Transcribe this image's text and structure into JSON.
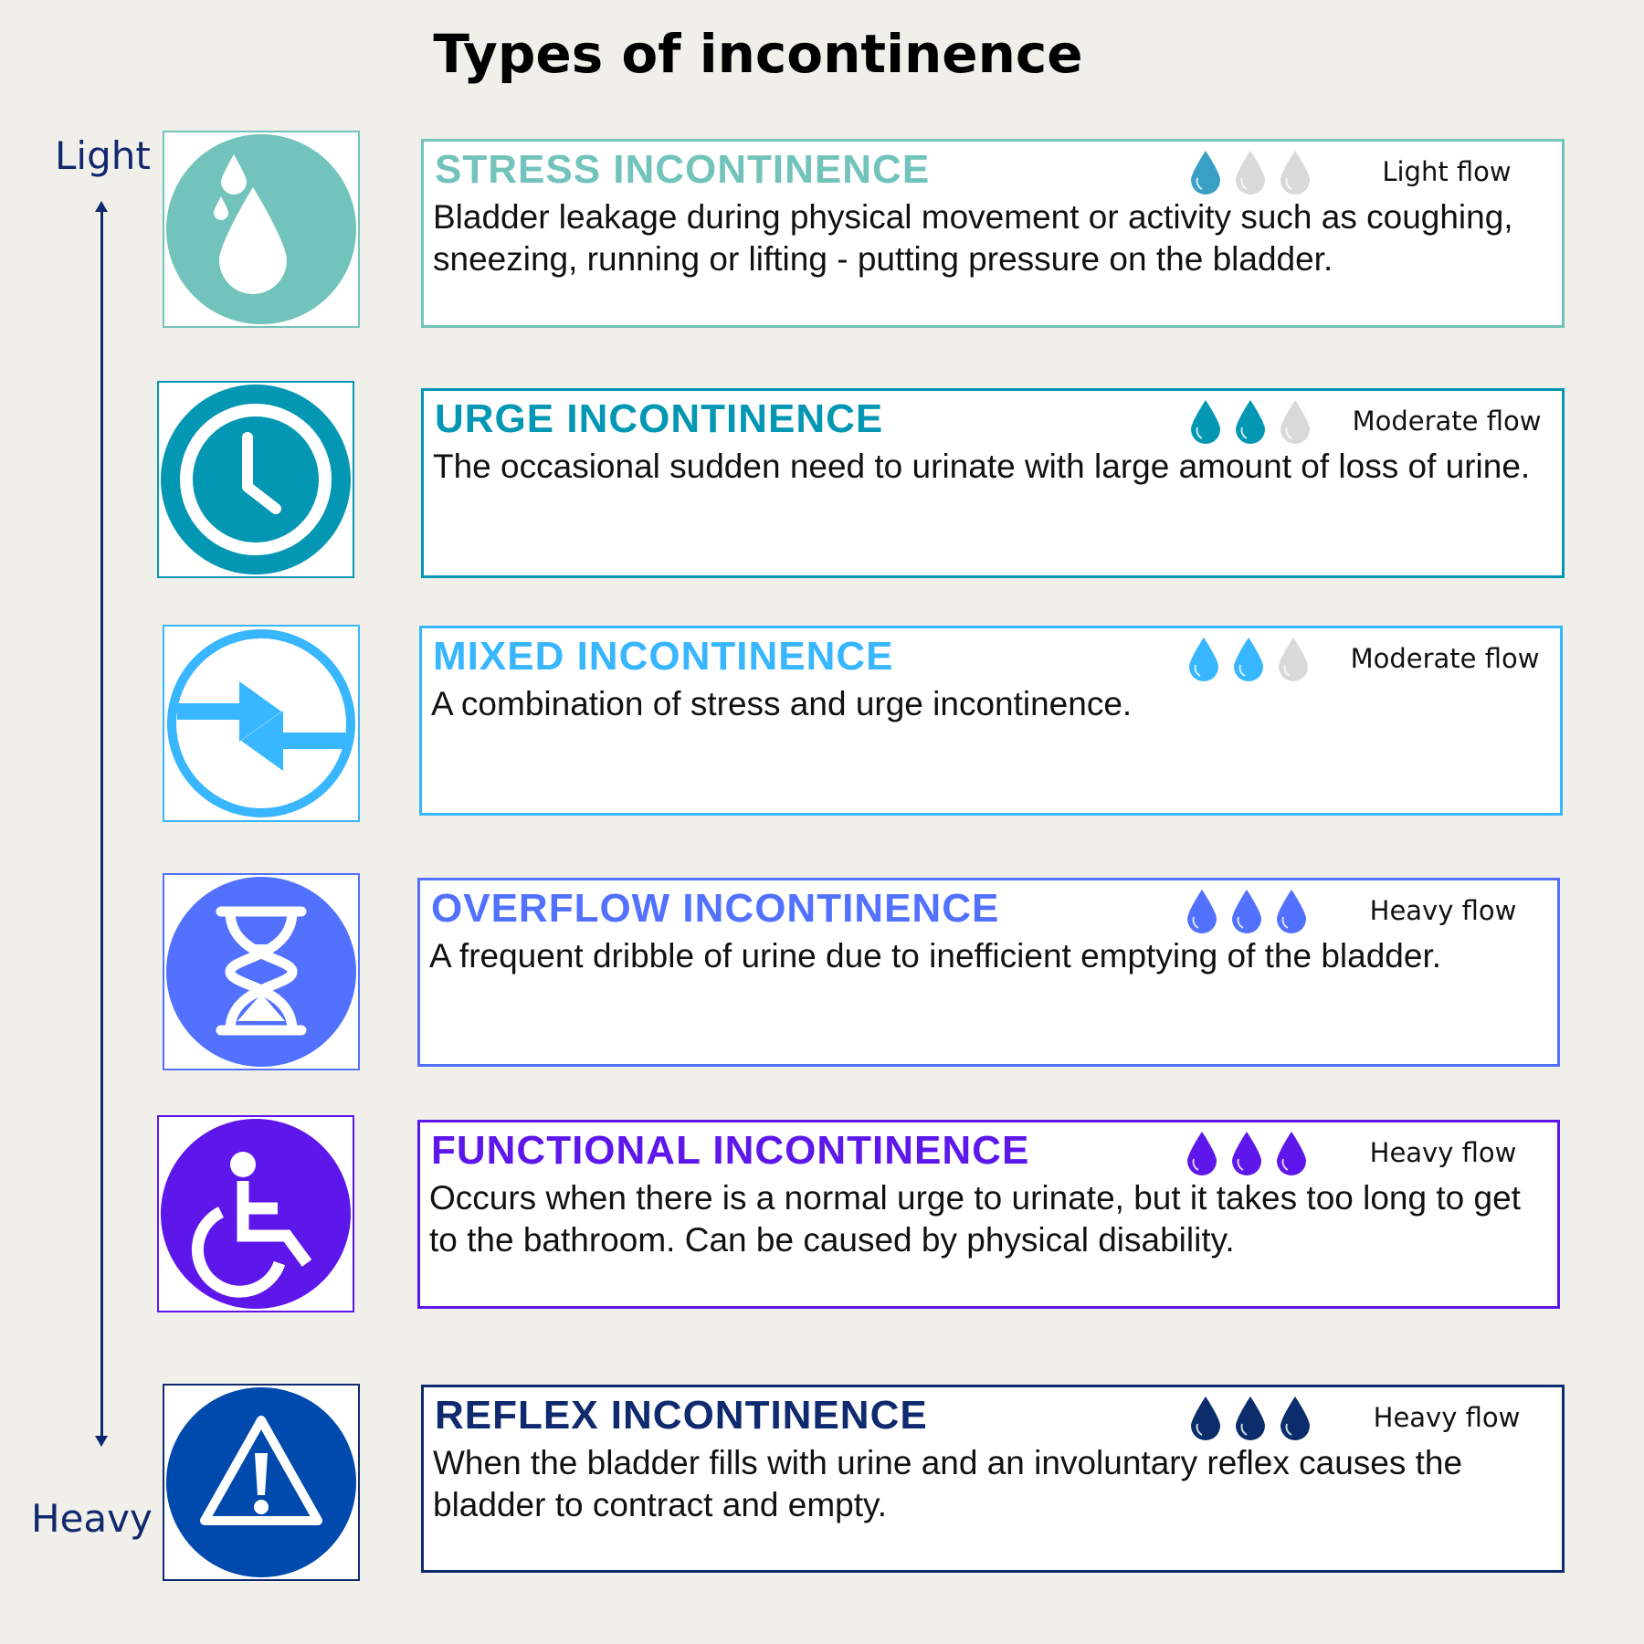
{
  "title": "Types of incontinence",
  "scale": {
    "top_label": "Light",
    "bottom_label": "Heavy",
    "color": "#12286e"
  },
  "items": [
    {
      "name": "STRESS INCONTINENCE",
      "color": "#72c3bb",
      "drop_color": "#3a9fc4",
      "icon": "water-drops-icon",
      "drops_filled": 1,
      "drops_total": 3,
      "flow": "Light flow",
      "description": "Bladder leakage during physical movement or activity such as coughing, sneezing, running or lifting - putting pressure on the bladder."
    },
    {
      "name": "URGE INCONTINENCE",
      "color": "#0497b3",
      "drop_color": "#0497b3",
      "icon": "clock-icon",
      "drops_filled": 2,
      "drops_total": 3,
      "flow": "Moderate flow",
      "description": "The occasional sudden need to urinate with large amount of loss of urine."
    },
    {
      "name": "MIXED INCONTINENCE",
      "color": "#38b6ff",
      "drop_color": "#38b6ff",
      "icon": "exchange-arrows-icon",
      "drops_filled": 2,
      "drops_total": 3,
      "flow": "Moderate flow",
      "description": "A combination of stress and urge incontinence."
    },
    {
      "name": "OVERFLOW INCONTINENCE",
      "color": "#5271ff",
      "drop_color": "#5271ff",
      "icon": "hourglass-icon",
      "drops_filled": 3,
      "drops_total": 3,
      "flow": "Heavy flow",
      "description": "A frequent dribble of urine due to inefficient emptying of the bladder."
    },
    {
      "name": "FUNCTIONAL INCONTINENCE",
      "color": "#5e17eb",
      "drop_color": "#5e17eb",
      "icon": "wheelchair-icon",
      "drops_filled": 3,
      "drops_total": 3,
      "flow": "Heavy flow",
      "description": "Occurs when there is a normal urge to urinate, but it takes too long to get to the bathroom. Can be caused by physical disability."
    },
    {
      "name": "REFLEX INCONTINENCE",
      "color": "#0f2a6e",
      "icon_color": "#004aad",
      "drop_color": "#0b2d6b",
      "icon": "warning-icon",
      "drops_filled": 3,
      "drops_total": 3,
      "flow": "Heavy flow",
      "description": "When the bladder fills with urine and an involuntary reflex causes the bladder to contract and empty."
    }
  ],
  "empty_drop_color": "#d9d9d9"
}
